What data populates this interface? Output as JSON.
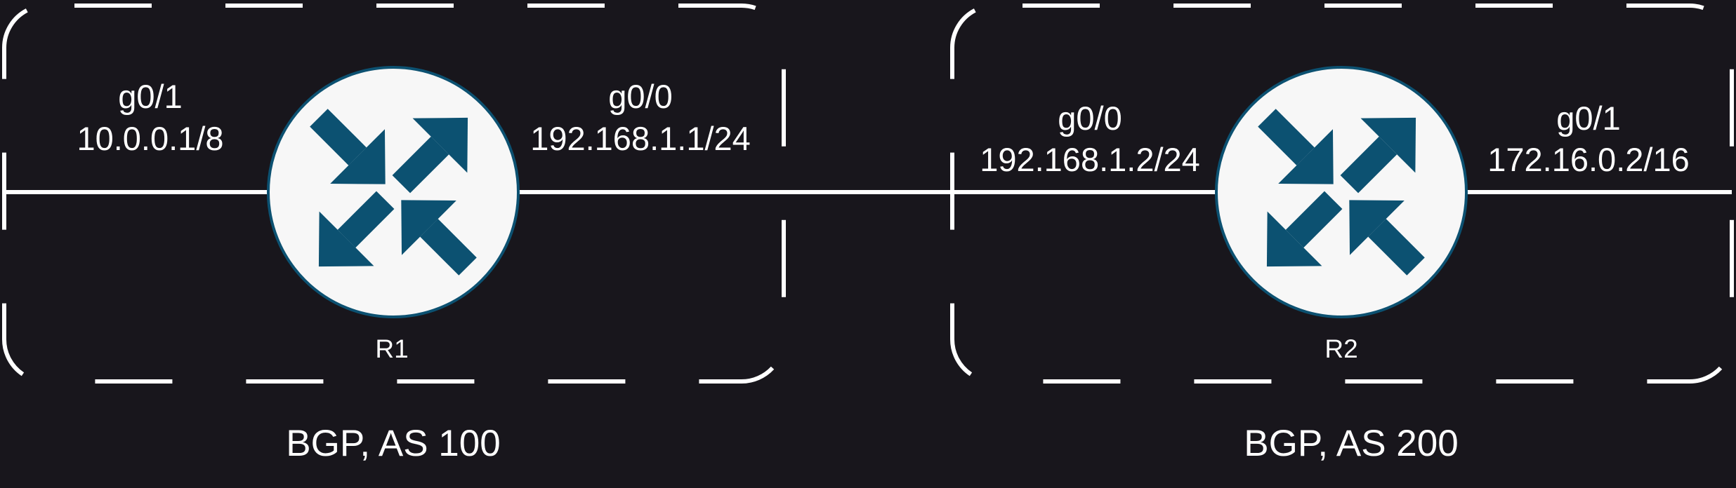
{
  "colors": {
    "background": "#18161c",
    "lines": "#ffffff",
    "router_fill": "#f7f7f7",
    "router_border": "#0c5171",
    "router_arrows": "#0c5171"
  },
  "routers": [
    {
      "name": "R1",
      "icon": "router-icon",
      "left_interface": {
        "name": "g0/1",
        "ip": "10.0.0.1/8"
      },
      "right_interface": {
        "name": "g0/0",
        "ip": "192.168.1.1/24"
      }
    },
    {
      "name": "R2",
      "icon": "router-icon",
      "left_interface": {
        "name": "g0/0",
        "ip": "192.168.1.2/24"
      },
      "right_interface": {
        "name": "g0/1",
        "ip": "172.16.0.2/16"
      }
    }
  ],
  "autonomous_systems": [
    {
      "label": "BGP, AS 100"
    },
    {
      "label": "BGP, AS 200"
    }
  ]
}
